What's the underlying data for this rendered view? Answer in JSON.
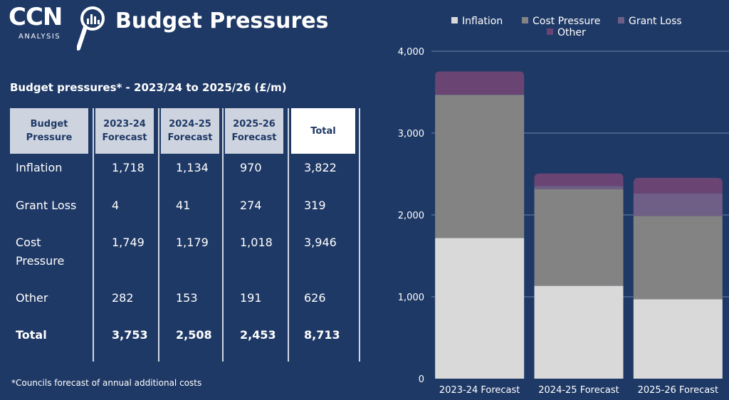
{
  "header": {
    "logo_text": "CCN",
    "logo_sub": "ANALYSIS",
    "title": "Budget Pressures"
  },
  "table": {
    "caption": "Budget pressures* - 2023/24 to 2025/26 (£/m)",
    "headers": [
      "Budget Pressure",
      "2023-24 Forecast",
      "2024-25 Forecast",
      "2025-26 Forecast",
      "Total"
    ],
    "rows": [
      {
        "label": "Inflation",
        "values": [
          "1,718",
          "1,134",
          "970",
          "3,822"
        ]
      },
      {
        "label": "Grant Loss",
        "values": [
          "4",
          "41",
          "274",
          "319"
        ]
      },
      {
        "label": "Cost Pressure",
        "values": [
          "1,749",
          "1,179",
          "1,018",
          "3,946"
        ]
      },
      {
        "label": "Other",
        "values": [
          "282",
          "153",
          "191",
          "626"
        ]
      },
      {
        "label": "Total",
        "values": [
          "3,753",
          "2,508",
          "2,453",
          "8,713"
        ]
      }
    ],
    "footnote": "*Councils forecast of annual additional costs"
  },
  "chart_data": {
    "type": "bar",
    "stacked": true,
    "categories": [
      "2023-24 Forecast",
      "2024-25 Forecast",
      "2025-26 Forecast"
    ],
    "series": [
      {
        "name": "Inflation",
        "values": [
          1718,
          1134,
          970
        ],
        "color": "#d9d9d9"
      },
      {
        "name": "Cost Pressure",
        "values": [
          1749,
          1179,
          1018
        ],
        "color": "#838383"
      },
      {
        "name": "Grant Loss",
        "values": [
          4,
          41,
          274
        ],
        "color": "#6f5f86"
      },
      {
        "name": "Other",
        "values": [
          282,
          153,
          191
        ],
        "color": "#6a4574"
      }
    ],
    "ylim": [
      0,
      4000
    ],
    "yticks": [
      0,
      1000,
      2000,
      3000,
      4000
    ],
    "ytick_labels": [
      "0",
      "1,000",
      "2,000",
      "3,000",
      "4,000"
    ],
    "grid": true,
    "legend": "top"
  }
}
